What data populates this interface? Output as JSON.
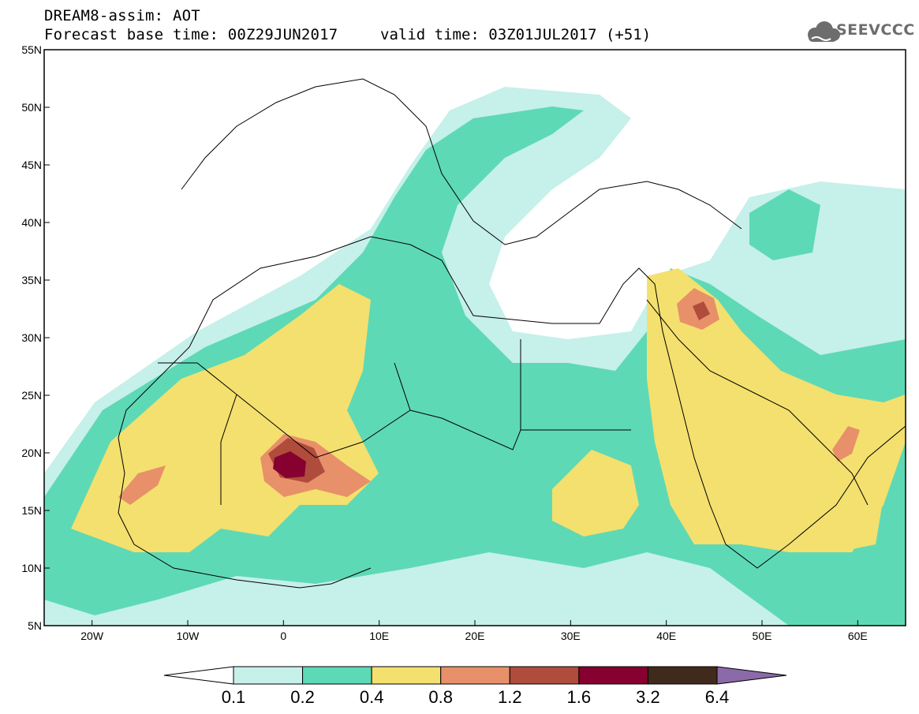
{
  "header": {
    "line1": "DREAM8-assim: AOT",
    "line2": "Forecast base time: 00Z29JUN2017",
    "valid": "valid time: 03Z01JUL2017 (+51)"
  },
  "logo": {
    "text": "SEEVCCC",
    "icon": "cloud-icon"
  },
  "map": {
    "extent": {
      "lon": [
        -25,
        65
      ],
      "lat": [
        5,
        55
      ]
    },
    "lat_ticks": [
      {
        "value": 55,
        "label": "55N"
      },
      {
        "value": 50,
        "label": "50N"
      },
      {
        "value": 45,
        "label": "45N"
      },
      {
        "value": 40,
        "label": "40N"
      },
      {
        "value": 35,
        "label": "35N"
      },
      {
        "value": 30,
        "label": "30N"
      },
      {
        "value": 25,
        "label": "25N"
      },
      {
        "value": 20,
        "label": "20N"
      },
      {
        "value": 15,
        "label": "15N"
      },
      {
        "value": 10,
        "label": "10N"
      },
      {
        "value": 5,
        "label": "5N"
      }
    ],
    "lon_ticks": [
      {
        "value": -20,
        "label": "20W"
      },
      {
        "value": -10,
        "label": "10W"
      },
      {
        "value": 0,
        "label": "0"
      },
      {
        "value": 10,
        "label": "10E"
      },
      {
        "value": 20,
        "label": "20E"
      },
      {
        "value": 30,
        "label": "30E"
      },
      {
        "value": 40,
        "label": "40E"
      },
      {
        "value": 50,
        "label": "50E"
      },
      {
        "value": 60,
        "label": "60E"
      }
    ]
  },
  "colorbar": {
    "levels": [
      "0.1",
      "0.2",
      "0.4",
      "0.8",
      "1.2",
      "1.6",
      "3.2",
      "6.4"
    ],
    "colors": [
      "#ffffff",
      "#c6f0ea",
      "#5ed9b5",
      "#f4e06e",
      "#e8906a",
      "#b04c3c",
      "#860030",
      "#3f2a1c",
      "#8a6aa8"
    ]
  }
}
